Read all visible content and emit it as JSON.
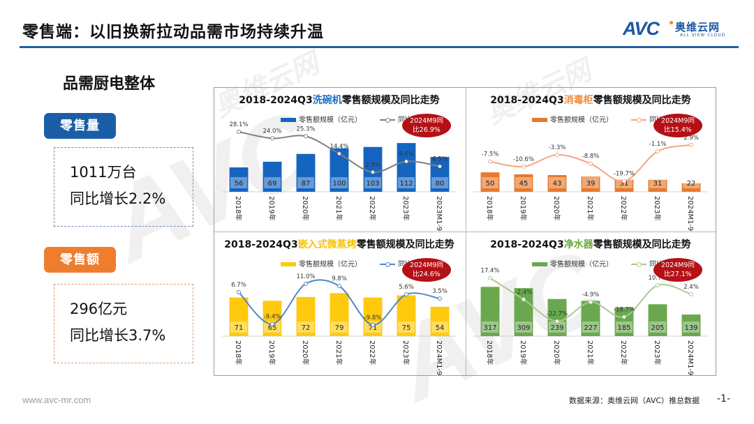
{
  "header": {
    "title": "零售端：以旧换新拉动品需市场持续升温",
    "logo_mark": "AVC",
    "logo_cn": "奥维云网",
    "logo_en": "ALL VIEW CLOUD",
    "accent_color": "#1f5fa0"
  },
  "left_panel": {
    "heading": "品需厨电整体",
    "kpis": [
      {
        "label": "零售量",
        "value": "1011万台",
        "growth": "同比增长2.2%",
        "color": "#1b5ea8"
      },
      {
        "label": "零售额",
        "value": "296亿元",
        "growth": "同比增长3.7%",
        "color": "#ef7d2e"
      }
    ]
  },
  "footer": {
    "url": "www.avc-mr.com",
    "source": "数据来源：奥维云网（AVC）推总数据",
    "page": "-1-"
  },
  "watermarks": [
    "AVC",
    "奥维云网",
    "ALL VIEW CLOUD"
  ],
  "chart_data": [
    {
      "type": "bar",
      "title_prefix": "2018-2024Q3",
      "title_product": "洗碗机",
      "title_suffix": "零售额规模及同比走势",
      "product_color": "#1e6fbf",
      "bar_color": "#1565c0",
      "line_color": "#7f7f7f",
      "legend": [
        "零售额规模（亿元）",
        "同比"
      ],
      "callout": [
        "2024M9同",
        "比26.9%"
      ],
      "categories": [
        "2018年",
        "2019年",
        "2020年",
        "2021年",
        "2022年",
        "2023年",
        "2023M1-9"
      ],
      "series": [
        {
          "name": "零售额规模（亿元）",
          "type": "bar",
          "values": [
            56,
            69,
            87,
            100,
            103,
            112,
            80
          ]
        },
        {
          "name": "同比",
          "type": "line",
          "values": [
            28.1,
            24.0,
            25.3,
            14.4,
            2.9,
            9.6,
            6.5
          ],
          "labels": [
            "28.1%",
            "24.0%",
            "25.3%",
            "14.4%",
            "2.9%",
            "9.6%",
            "6.5%"
          ]
        }
      ],
      "bar_ylim": [
        0,
        125
      ],
      "line_ylim": [
        -5,
        32
      ]
    },
    {
      "type": "bar",
      "title_prefix": "2018-2024Q3",
      "title_product": "消毒柜",
      "title_suffix": "零售额规模及同比走势",
      "product_color": "#f08a3c",
      "bar_color": "#e67a2e",
      "line_color": "#f4a582",
      "legend": [
        "零售额规模（亿元）",
        "同比"
      ],
      "callout": [
        "2024M9同",
        "比15.4%"
      ],
      "categories": [
        "2018年",
        "2019年",
        "2020年",
        "2021年",
        "2022年",
        "2023年",
        "2024M1-9"
      ],
      "series": [
        {
          "name": "零售额规模（亿元）",
          "type": "bar",
          "values": [
            50,
            45,
            43,
            39,
            31,
            31,
            22
          ]
        },
        {
          "name": "同比",
          "type": "line",
          "values": [
            -7.5,
            -10.6,
            -3.3,
            -8.8,
            -19.7,
            -1.1,
            2.9
          ],
          "labels": [
            "-7.5%",
            "-10.6%",
            "-3.3%",
            "-8.8%",
            "-19.7%",
            "-1.1%",
            "2.9%"
          ]
        }
      ],
      "bar_ylim": [
        0,
        140
      ],
      "line_ylim": [
        -22,
        15
      ]
    },
    {
      "type": "bar",
      "title_prefix": "2018-2024Q3",
      "title_product": "嵌入式微蒸烤",
      "title_suffix": "零售额规模及同比走势",
      "product_color": "#f5c200",
      "bar_color": "#ffc90e",
      "line_color": "#4f86c6",
      "legend": [
        "零售额规模（亿元）",
        "同比"
      ],
      "callout": [
        "2024M9同",
        "比24.6%"
      ],
      "categories": [
        "2018年",
        "2019年",
        "2020年",
        "2021年",
        "2022年",
        "2023年",
        "2024M1-9"
      ],
      "series": [
        {
          "name": "零售额规模（亿元）",
          "type": "bar",
          "values": [
            71,
            65,
            72,
            79,
            71,
            75,
            54
          ]
        },
        {
          "name": "同比",
          "type": "line",
          "values": [
            6.7,
            -9.4,
            11.0,
            9.8,
            -9.8,
            5.6,
            3.5
          ],
          "labels": [
            "6.7%",
            "-9.4%",
            "11.0%",
            "9.8%",
            "-9.8%",
            "5.6%",
            "3.5%"
          ]
        }
      ],
      "bar_ylim": [
        0,
        100
      ],
      "line_ylim": [
        -12,
        18
      ]
    },
    {
      "type": "bar",
      "title_prefix": "2018-2024Q3",
      "title_product": "净水器",
      "title_suffix": "零售额规模及同比走势",
      "product_color": "#6aaa3a",
      "bar_color": "#6aa84f",
      "line_color": "#a9c98f",
      "legend": [
        "零售额规模（亿元）",
        "同比"
      ],
      "callout": [
        "2024M9同",
        "比27.1%"
      ],
      "categories": [
        "2018年",
        "2019年",
        "2020年",
        "2021年",
        "2022年",
        "2023年",
        "2024M1-9"
      ],
      "series": [
        {
          "name": "零售额规模（亿元）",
          "type": "bar",
          "values": [
            317,
            309,
            239,
            227,
            185,
            205,
            139
          ]
        },
        {
          "name": "同比",
          "type": "line",
          "values": [
            17.4,
            -2.4,
            -22.7,
            -4.9,
            -18.7,
            10.7,
            2.4
          ],
          "labels": [
            "17.4%",
            "-2.4%",
            "-22.7%",
            "-4.9%",
            "-18.7%",
            "10.7%",
            "2.4%"
          ]
        }
      ],
      "bar_ylim": [
        0,
        350
      ],
      "line_ylim": [
        -30,
        25
      ]
    }
  ]
}
